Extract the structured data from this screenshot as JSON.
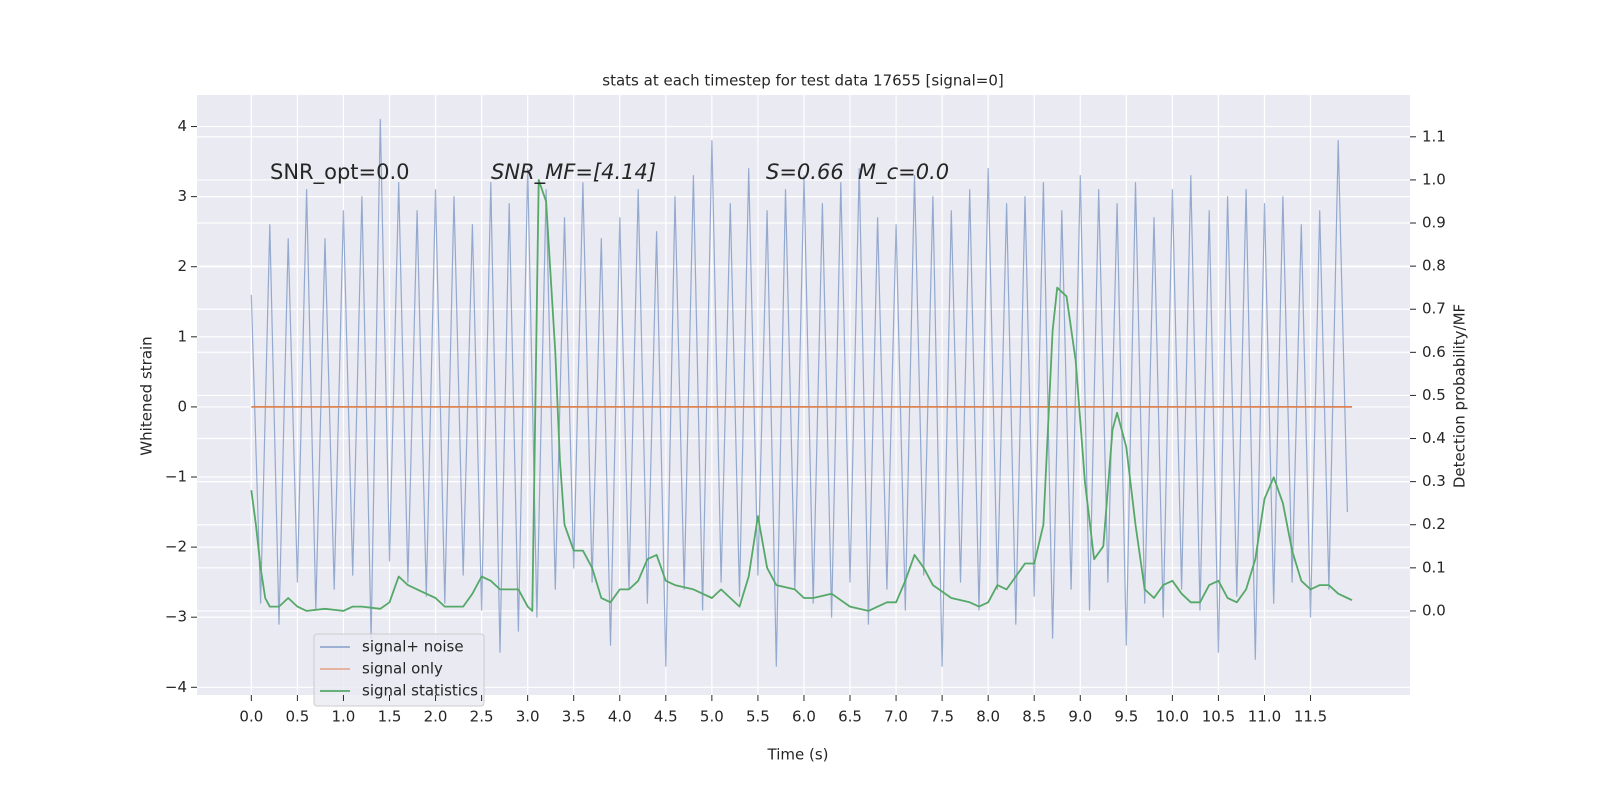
{
  "chart_data": {
    "type": "line",
    "title": "stats at each timestep for test data 17655 [signal=0]",
    "xlabel": "Time (s)",
    "ylabel": "Whitened strain",
    "y2label": "Detection probability/MF",
    "annotations": [
      "SNR_opt=0.0",
      "SNR_MF=[4.14]",
      "S=0.66",
      "M_c=0.0"
    ],
    "xlim": [
      -0.59,
      12.58
    ],
    "ylim": [
      -4.11,
      4.45
    ],
    "y2lim": [
      -0.195,
      1.197
    ],
    "xticks": [
      {
        "value": 0,
        "label": "0.0"
      },
      0.5,
      {
        "value": 1,
        "label": "1.0"
      },
      1.5,
      {
        "value": 2,
        "label": "2.0"
      },
      2.5,
      {
        "value": 3,
        "label": "3.0"
      },
      3.5,
      {
        "value": 4,
        "label": "4.0"
      },
      4.5,
      {
        "value": 5,
        "label": "5.0"
      },
      5.5,
      {
        "value": 6,
        "label": "6.0"
      },
      6.5,
      {
        "value": 7,
        "label": "7.0"
      },
      7.5,
      {
        "value": 8,
        "label": "8.0"
      },
      8.5,
      {
        "value": 9,
        "label": "9.0"
      },
      9.5,
      {
        "value": 10,
        "label": "10.0"
      },
      10.5,
      {
        "value": 11,
        "label": "11.0"
      },
      11.5
    ],
    "yticks": [
      {
        "value": -4,
        "label": "−4"
      },
      {
        "value": -3,
        "label": "−3"
      },
      {
        "value": -2,
        "label": "−2"
      },
      {
        "value": -1,
        "label": "−1"
      },
      0,
      1,
      2,
      3,
      4
    ],
    "y2ticks": [
      {
        "value": 0,
        "label": "0.0"
      },
      0.1,
      0.2,
      0.3,
      0.4,
      0.5,
      0.6,
      0.7,
      0.8,
      0.9,
      {
        "value": 1,
        "label": "1.0"
      },
      1.1
    ],
    "grid": true,
    "legend": "lower left",
    "series": [
      {
        "name": "signal+ noise",
        "color": "#4c72b0",
        "x": [
          0,
          0.1,
          0.2,
          0.3,
          0.4,
          0.5,
          0.6,
          0.7,
          0.8,
          0.9,
          1,
          1.1,
          1.2,
          1.3,
          1.4,
          1.5,
          1.6,
          1.7,
          1.8,
          1.9,
          2,
          2.1,
          2.2,
          2.3,
          2.4,
          2.5,
          2.6,
          2.7,
          2.8,
          2.9,
          3,
          3.1,
          3.2,
          3.3,
          3.4,
          3.5,
          3.6,
          3.7,
          3.8,
          3.9,
          4,
          4.1,
          4.2,
          4.3,
          4.4,
          4.5,
          4.6,
          4.7,
          4.8,
          4.9,
          5,
          5.1,
          5.2,
          5.3,
          5.4,
          5.5,
          5.6,
          5.7,
          5.8,
          5.9,
          6,
          6.1,
          6.2,
          6.3,
          6.4,
          6.5,
          6.6,
          6.7,
          6.8,
          6.9,
          7,
          7.1,
          7.2,
          7.3,
          7.4,
          7.5,
          7.6,
          7.7,
          7.8,
          7.9,
          8,
          8.1,
          8.2,
          8.3,
          8.4,
          8.5,
          8.6,
          8.7,
          8.8,
          8.9,
          9,
          9.1,
          9.2,
          9.3,
          9.4,
          9.5,
          9.6,
          9.7,
          9.8,
          9.9,
          10,
          10.1,
          10.2,
          10.3,
          10.4,
          10.5,
          10.6,
          10.7,
          10.8,
          10.9,
          11,
          11.1,
          11.2,
          11.3,
          11.4,
          11.5,
          11.6,
          11.7,
          11.8,
          11.9
        ],
        "values": [
          1.6,
          -2.8,
          2.6,
          -3.1,
          2.4,
          -2.5,
          3.1,
          -2.9,
          2.4,
          -2.6,
          2.8,
          -2.4,
          3.0,
          -3.3,
          4.1,
          -2.2,
          3.2,
          -2.5,
          2.8,
          -2.7,
          3.1,
          -2.8,
          3.0,
          -2.4,
          2.6,
          -2.9,
          3.2,
          -3.5,
          2.9,
          -3.2,
          3.4,
          -3.0,
          3.1,
          -2.6,
          2.7,
          -2.3,
          3.2,
          -2.5,
          2.4,
          -3.4,
          2.7,
          -2.6,
          3.1,
          -2.8,
          2.5,
          -3.7,
          3.0,
          -2.6,
          3.3,
          -2.9,
          3.8,
          -2.5,
          2.9,
          -2.7,
          3.4,
          -2.4,
          2.8,
          -3.7,
          3.1,
          -2.6,
          3.3,
          -2.8,
          2.9,
          -3.0,
          3.2,
          -2.5,
          3.4,
          -3.1,
          2.7,
          -2.6,
          2.6,
          -2.9,
          3.3,
          -2.4,
          3.0,
          -3.7,
          2.8,
          -2.5,
          3.1,
          -2.9,
          3.4,
          -2.6,
          2.9,
          -3.1,
          3.0,
          -2.7,
          3.2,
          -3.3,
          2.8,
          -2.6,
          3.3,
          -2.9,
          3.1,
          -2.5,
          2.9,
          -3.4,
          3.2,
          -2.8,
          2.7,
          -3.0,
          3.1,
          -2.6,
          3.3,
          -2.9,
          2.8,
          -3.5,
          3.0,
          -2.7,
          3.1,
          -3.6,
          2.9,
          -2.8,
          3.0,
          -2.5,
          2.6,
          -3.0,
          2.8,
          -2.6,
          3.8,
          -1.5
        ]
      },
      {
        "name": "signal only",
        "color": "#dd8452",
        "x": [
          0,
          11.95
        ],
        "values": [
          0,
          0
        ]
      },
      {
        "name": "signal statistics",
        "color": "#55a868",
        "axis": "y2",
        "x": [
          0,
          0.05,
          0.1,
          0.15,
          0.2,
          0.3,
          0.4,
          0.5,
          0.6,
          0.8,
          1.0,
          1.1,
          1.2,
          1.4,
          1.5,
          1.6,
          1.7,
          1.8,
          2.0,
          2.1,
          2.3,
          2.4,
          2.5,
          2.6,
          2.7,
          2.9,
          3.0,
          3.05,
          3.12,
          3.2,
          3.3,
          3.35,
          3.4,
          3.5,
          3.6,
          3.7,
          3.8,
          3.9,
          4.0,
          4.1,
          4.2,
          4.3,
          4.4,
          4.5,
          4.6,
          4.8,
          5.0,
          5.1,
          5.2,
          5.3,
          5.4,
          5.5,
          5.6,
          5.7,
          5.9,
          6.0,
          6.1,
          6.3,
          6.5,
          6.7,
          6.9,
          7.0,
          7.1,
          7.2,
          7.3,
          7.4,
          7.6,
          7.8,
          7.9,
          8.0,
          8.1,
          8.2,
          8.3,
          8.4,
          8.5,
          8.6,
          8.7,
          8.75,
          8.85,
          8.95,
          9.05,
          9.15,
          9.25,
          9.35,
          9.4,
          9.5,
          9.6,
          9.7,
          9.8,
          9.9,
          10.0,
          10.1,
          10.2,
          10.3,
          10.4,
          10.5,
          10.6,
          10.7,
          10.8,
          10.9,
          11.0,
          11.1,
          11.2,
          11.3,
          11.4,
          11.5,
          11.6,
          11.7,
          11.8,
          11.9,
          11.95
        ],
        "values": [
          0.28,
          0.2,
          0.1,
          0.03,
          0.01,
          0.01,
          0.03,
          0.01,
          0.0,
          0.005,
          0.0,
          0.01,
          0.01,
          0.005,
          0.02,
          0.08,
          0.06,
          0.05,
          0.03,
          0.01,
          0.01,
          0.04,
          0.08,
          0.07,
          0.05,
          0.05,
          0.01,
          0.0,
          1.0,
          0.95,
          0.6,
          0.35,
          0.2,
          0.14,
          0.14,
          0.1,
          0.03,
          0.02,
          0.05,
          0.05,
          0.07,
          0.12,
          0.13,
          0.07,
          0.06,
          0.05,
          0.03,
          0.05,
          0.03,
          0.01,
          0.08,
          0.22,
          0.1,
          0.06,
          0.05,
          0.03,
          0.03,
          0.04,
          0.01,
          0.0,
          0.02,
          0.02,
          0.07,
          0.13,
          0.1,
          0.06,
          0.03,
          0.02,
          0.01,
          0.02,
          0.06,
          0.05,
          0.08,
          0.11,
          0.11,
          0.2,
          0.65,
          0.75,
          0.73,
          0.58,
          0.3,
          0.12,
          0.15,
          0.42,
          0.46,
          0.38,
          0.2,
          0.05,
          0.03,
          0.06,
          0.07,
          0.04,
          0.02,
          0.02,
          0.06,
          0.07,
          0.03,
          0.02,
          0.05,
          0.12,
          0.26,
          0.31,
          0.25,
          0.14,
          0.07,
          0.05,
          0.06,
          0.06,
          0.04,
          0.03,
          0.025
        ]
      }
    ]
  }
}
